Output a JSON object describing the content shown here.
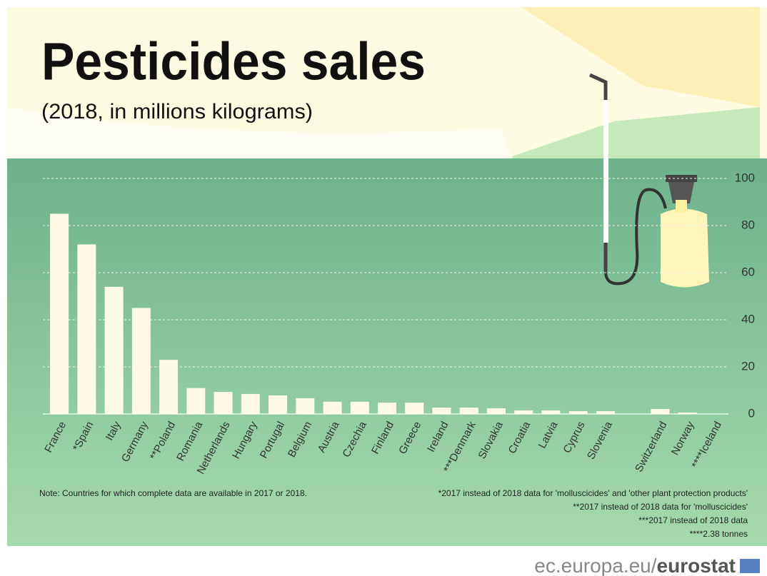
{
  "chart_data": {
    "type": "bar",
    "title": "Pesticides sales",
    "subtitle": "(2018, in millions kilograms)",
    "categories": [
      "France",
      "*Spain",
      "Italy",
      "Germany",
      "**Poland",
      "Romania",
      "Netherlands",
      "Hungary",
      "Portugal",
      "Belgium",
      "Austria",
      "Czechia",
      "Finland",
      "Greece",
      "Ireland",
      "***Denmark",
      "Slovakia",
      "Croatia",
      "Latvia",
      "Cyprus",
      "Slovenia",
      null,
      "Switzerland",
      "Norway",
      "****Iceland"
    ],
    "values": [
      85,
      72,
      54,
      45,
      23,
      11,
      9.4,
      8.5,
      7.9,
      6.7,
      5.2,
      5.2,
      4.8,
      4.8,
      2.7,
      2.7,
      2.4,
      1.5,
      1.5,
      1.2,
      1.2,
      null,
      2.1,
      0.6,
      0.00238
    ],
    "color": "#fffbe6",
    "ylim": [
      0,
      100
    ],
    "yticks": [
      0,
      20,
      40,
      60,
      80,
      100
    ],
    "grid": true,
    "note": "Note: Countries for which complete data are available in 2017 or 2018.",
    "footnotes": [
      "*2017 instead of 2018 data for 'molluscicides' and 'other plant protection products'",
      "**2017 instead of 2018 data for 'molluscicides'",
      "***2017 instead of 2018 data",
      "****2.38 tonnes"
    ],
    "source": "ec.europa.eu/",
    "source_brand": "eurostat"
  }
}
